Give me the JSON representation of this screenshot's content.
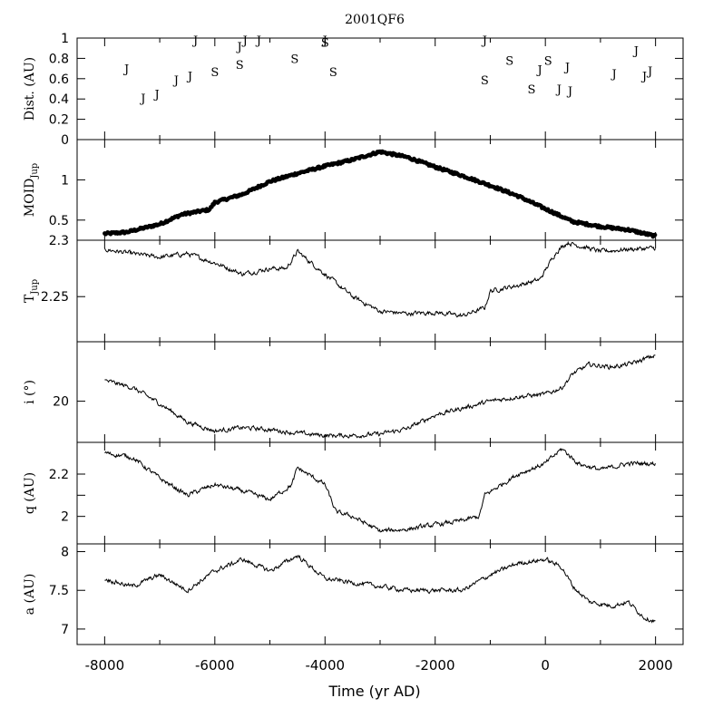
{
  "title": "2001QF6",
  "chart_data": [
    {
      "type": "scatter",
      "name": "close-approaches",
      "ylabel": "Dist. (AU)",
      "ylim": [
        0,
        1
      ],
      "yticks": [
        0,
        0.2,
        0.4,
        0.6,
        0.8,
        1
      ],
      "yticklabels": [
        "0",
        "0.2",
        "0.4",
        "0.6",
        "0.8",
        "1"
      ],
      "xlim": [
        -8500,
        2500
      ],
      "points": [
        {
          "x": -7600,
          "y": 0.7,
          "label": "J"
        },
        {
          "x": -7300,
          "y": 0.41,
          "label": "J"
        },
        {
          "x": -7050,
          "y": 0.45,
          "label": "J"
        },
        {
          "x": -6700,
          "y": 0.59,
          "label": "J"
        },
        {
          "x": -6450,
          "y": 0.63,
          "label": "J"
        },
        {
          "x": -6350,
          "y": 0.98,
          "label": "J"
        },
        {
          "x": -6000,
          "y": 0.67,
          "label": "S"
        },
        {
          "x": -5550,
          "y": 0.74,
          "label": "S"
        },
        {
          "x": -5550,
          "y": 0.92,
          "label": "J"
        },
        {
          "x": -5450,
          "y": 0.98,
          "label": "J"
        },
        {
          "x": -5200,
          "y": 0.98,
          "label": "J"
        },
        {
          "x": -4550,
          "y": 0.8,
          "label": "S"
        },
        {
          "x": -4000,
          "y": 0.98,
          "label": "J"
        },
        {
          "x": -4000,
          "y": 0.96,
          "label": "S"
        },
        {
          "x": -3850,
          "y": 0.67,
          "label": "S"
        },
        {
          "x": -1100,
          "y": 0.98,
          "label": "J"
        },
        {
          "x": -1100,
          "y": 0.59,
          "label": "S"
        },
        {
          "x": -650,
          "y": 0.78,
          "label": "S"
        },
        {
          "x": -250,
          "y": 0.5,
          "label": "S"
        },
        {
          "x": -100,
          "y": 0.69,
          "label": "J"
        },
        {
          "x": 50,
          "y": 0.78,
          "label": "S"
        },
        {
          "x": 250,
          "y": 0.5,
          "label": "J"
        },
        {
          "x": 400,
          "y": 0.72,
          "label": "J"
        },
        {
          "x": 450,
          "y": 0.48,
          "label": "J"
        },
        {
          "x": 1250,
          "y": 0.65,
          "label": "J"
        },
        {
          "x": 1650,
          "y": 0.88,
          "label": "J"
        },
        {
          "x": 1800,
          "y": 0.63,
          "label": "J"
        },
        {
          "x": 1900,
          "y": 0.68,
          "label": "J"
        }
      ]
    },
    {
      "type": "scatter",
      "name": "moid",
      "ylabel": "MOID",
      "ylabel_sub": "Jup",
      "ylim": [
        0.25,
        1.5
      ],
      "yticks": [
        0.5,
        1
      ],
      "yticklabels": [
        "0.5",
        "1"
      ],
      "xlim": [
        -8500,
        2500
      ],
      "knots": [
        [
          -8000,
          0.33
        ],
        [
          -7600,
          0.35
        ],
        [
          -7000,
          0.45
        ],
        [
          -6600,
          0.57
        ],
        [
          -6100,
          0.63
        ],
        [
          -6000,
          0.72
        ],
        [
          -5500,
          0.82
        ],
        [
          -5000,
          0.98
        ],
        [
          -4500,
          1.08
        ],
        [
          -4000,
          1.17
        ],
        [
          -3500,
          1.25
        ],
        [
          -3000,
          1.35
        ],
        [
          -2500,
          1.28
        ],
        [
          -2000,
          1.16
        ],
        [
          -1500,
          1.05
        ],
        [
          -1000,
          0.93
        ],
        [
          -500,
          0.8
        ],
        [
          0,
          0.64
        ],
        [
          500,
          0.48
        ],
        [
          1000,
          0.42
        ],
        [
          1500,
          0.38
        ],
        [
          2000,
          0.3
        ]
      ]
    },
    {
      "type": "line",
      "name": "tisserand",
      "ylabel": "T",
      "ylabel_sub": "Jup",
      "ylim": [
        2.21,
        2.3
      ],
      "yticks": [
        2.25,
        2.3
      ],
      "yticklabels": [
        "2.25",
        "2.3"
      ],
      "xlim": [
        -8500,
        2500
      ],
      "knots": [
        [
          -8000,
          2.292
        ],
        [
          -7500,
          2.288
        ],
        [
          -7000,
          2.285
        ],
        [
          -6500,
          2.288
        ],
        [
          -6000,
          2.28
        ],
        [
          -5500,
          2.27
        ],
        [
          -5000,
          2.275
        ],
        [
          -4700,
          2.275
        ],
        [
          -4500,
          2.29
        ],
        [
          -4000,
          2.27
        ],
        [
          -3500,
          2.25
        ],
        [
          -3000,
          2.237
        ],
        [
          -2500,
          2.235
        ],
        [
          -2000,
          2.236
        ],
        [
          -1500,
          2.233
        ],
        [
          -1100,
          2.24
        ],
        [
          -1000,
          2.255
        ],
        [
          -500,
          2.26
        ],
        [
          -100,
          2.265
        ],
        [
          200,
          2.29
        ],
        [
          400,
          2.298
        ],
        [
          1000,
          2.29
        ],
        [
          1500,
          2.292
        ],
        [
          2000,
          2.293
        ]
      ]
    },
    {
      "type": "line",
      "name": "inclination",
      "ylabel": "i (°)",
      "ylim": [
        19.1,
        21.3
      ],
      "yticks": [
        20
      ],
      "yticklabels": [
        "20"
      ],
      "xlim": [
        -8500,
        2500
      ],
      "knots": [
        [
          -8000,
          20.45
        ],
        [
          -7500,
          20.3
        ],
        [
          -7000,
          19.95
        ],
        [
          -6500,
          19.55
        ],
        [
          -6000,
          19.35
        ],
        [
          -5500,
          19.42
        ],
        [
          -5000,
          19.38
        ],
        [
          -4500,
          19.3
        ],
        [
          -4000,
          19.25
        ],
        [
          -3500,
          19.25
        ],
        [
          -3000,
          19.28
        ],
        [
          -2500,
          19.4
        ],
        [
          -2000,
          19.7
        ],
        [
          -1500,
          19.85
        ],
        [
          -1000,
          20.0
        ],
        [
          -500,
          20.1
        ],
        [
          0,
          20.15
        ],
        [
          300,
          20.3
        ],
        [
          500,
          20.6
        ],
        [
          800,
          20.8
        ],
        [
          1200,
          20.75
        ],
        [
          1500,
          20.8
        ],
        [
          2000,
          21.0
        ]
      ]
    },
    {
      "type": "line",
      "name": "perihelion",
      "ylabel": "q (AU)",
      "ylim": [
        1.87,
        2.35
      ],
      "yticks": [
        2,
        2.1,
        2.2
      ],
      "yticklabels": [
        "2",
        "",
        "2.2"
      ],
      "xlim": [
        -8500,
        2500
      ],
      "knots": [
        [
          -8000,
          2.3
        ],
        [
          -7500,
          2.28
        ],
        [
          -7000,
          2.18
        ],
        [
          -6500,
          2.1
        ],
        [
          -6000,
          2.15
        ],
        [
          -5500,
          2.12
        ],
        [
          -5000,
          2.08
        ],
        [
          -4600,
          2.15
        ],
        [
          -4500,
          2.23
        ],
        [
          -4000,
          2.15
        ],
        [
          -3800,
          2.02
        ],
        [
          -3500,
          2.0
        ],
        [
          -3000,
          1.93
        ],
        [
          -2500,
          1.94
        ],
        [
          -2000,
          1.96
        ],
        [
          -1500,
          1.98
        ],
        [
          -1200,
          2.0
        ],
        [
          -1100,
          2.1
        ],
        [
          -500,
          2.2
        ],
        [
          0,
          2.25
        ],
        [
          300,
          2.32
        ],
        [
          600,
          2.25
        ],
        [
          1000,
          2.22
        ],
        [
          1500,
          2.25
        ],
        [
          2000,
          2.25
        ]
      ]
    },
    {
      "type": "line",
      "name": "semimajor",
      "ylabel": "a (AU)",
      "xlabel": "Time (yr AD)",
      "ylim": [
        6.8,
        8.1
      ],
      "yticks": [
        7,
        7.5,
        8
      ],
      "yticklabels": [
        "7",
        "7.5",
        "8"
      ],
      "xlim": [
        -8500,
        2500
      ],
      "xticks": [
        -8000,
        -6000,
        -4000,
        -2000,
        0,
        2000
      ],
      "xticklabels": [
        "-8000",
        "-6000",
        "-4000",
        "-2000",
        "0",
        "2000"
      ],
      "knots": [
        [
          -8000,
          7.65
        ],
        [
          -7500,
          7.55
        ],
        [
          -7000,
          7.7
        ],
        [
          -6500,
          7.5
        ],
        [
          -6000,
          7.75
        ],
        [
          -5500,
          7.9
        ],
        [
          -5000,
          7.75
        ],
        [
          -4500,
          7.95
        ],
        [
          -4000,
          7.65
        ],
        [
          -3500,
          7.6
        ],
        [
          -3000,
          7.55
        ],
        [
          -2500,
          7.5
        ],
        [
          -2000,
          7.5
        ],
        [
          -1500,
          7.5
        ],
        [
          -1000,
          7.7
        ],
        [
          -500,
          7.85
        ],
        [
          0,
          7.9
        ],
        [
          300,
          7.8
        ],
        [
          500,
          7.55
        ],
        [
          800,
          7.35
        ],
        [
          1200,
          7.3
        ],
        [
          1500,
          7.35
        ],
        [
          1800,
          7.15
        ],
        [
          2000,
          7.1
        ]
      ]
    }
  ]
}
